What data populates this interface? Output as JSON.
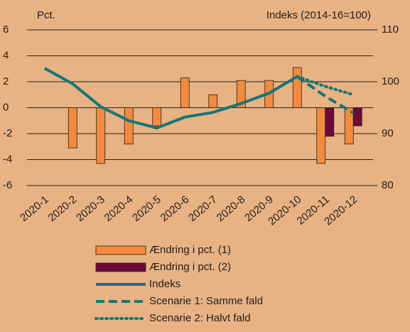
{
  "chart_data": {
    "type": "bar",
    "y_label": "Pct.",
    "y2_label": "Indeks (2014-16=100)",
    "categories": [
      "2020-1",
      "2020-2",
      "2020-3",
      "2020-4",
      "2020-5",
      "2020-6",
      "2020-7",
      "2020-8",
      "2020-9",
      "2020-10",
      "2020-11",
      "2020-12"
    ],
    "ylim": [
      -6,
      6
    ],
    "yticks": [
      -6,
      -4,
      -2,
      0,
      2,
      4,
      6
    ],
    "y2lim": [
      80,
      110
    ],
    "y2ticks": [
      80,
      90,
      100,
      110
    ],
    "grid": true,
    "series": [
      {
        "name": "Ændring i pct. (1)",
        "type": "bar",
        "color": "#f58a3c",
        "values": [
          null,
          -3.1,
          -4.3,
          -2.8,
          -1.4,
          2.3,
          1.0,
          2.1,
          2.1,
          3.1,
          -4.3,
          -2.8
        ]
      },
      {
        "name": "Ændring i pct. (2)",
        "type": "bar",
        "color": "#6e0a3a",
        "values": [
          null,
          null,
          null,
          null,
          null,
          null,
          null,
          null,
          null,
          null,
          -2.2,
          -1.4
        ]
      },
      {
        "name": "Indeks",
        "type": "line",
        "axis": "y2",
        "color": "#13757a",
        "dash": "solid",
        "values": [
          102.6,
          99.6,
          95.2,
          92.5,
          91.1,
          93.2,
          94.1,
          95.8,
          97.8,
          101.0,
          null,
          null
        ]
      },
      {
        "name": "Scenarie 1: Samme fald",
        "type": "line",
        "axis": "y2",
        "color": "#13757a",
        "dash": "dashed",
        "values": [
          null,
          null,
          null,
          null,
          null,
          null,
          null,
          null,
          null,
          101.0,
          97.2,
          94.0
        ]
      },
      {
        "name": "Scenarie 2: Halvt fald",
        "type": "line",
        "axis": "y2",
        "color": "#13757a",
        "dash": "dotted",
        "values": [
          null,
          null,
          null,
          null,
          null,
          null,
          null,
          null,
          null,
          101.0,
          99.1,
          97.5
        ]
      }
    ]
  }
}
